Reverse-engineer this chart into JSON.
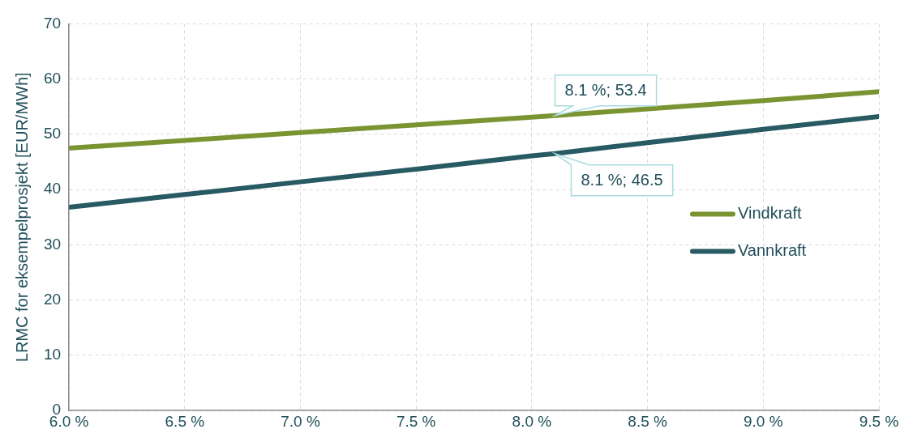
{
  "chart_data": {
    "type": "line",
    "ylabel": "LRMC for eksempelprosjekt [EUR/MWh]",
    "x": [
      6.0,
      6.5,
      7.0,
      7.5,
      8.0,
      8.1,
      8.5,
      9.0,
      9.5
    ],
    "series": [
      {
        "name": "Vindkraft",
        "color": "#7a9432",
        "values": [
          47.5,
          48.9,
          50.3,
          51.7,
          53.1,
          53.4,
          54.6,
          56.1,
          57.7
        ]
      },
      {
        "name": "Vannkraft",
        "color": "#275a62",
        "values": [
          36.8,
          39.1,
          41.4,
          43.7,
          46.1,
          46.5,
          48.5,
          50.9,
          53.2
        ]
      }
    ],
    "xlim": [
      6.0,
      9.5
    ],
    "xticks": [
      {
        "value": 6.0,
        "label": "6.0 %"
      },
      {
        "value": 6.5,
        "label": "6.5 %"
      },
      {
        "value": 7.0,
        "label": "7.0 %"
      },
      {
        "value": 7.5,
        "label": "7.5 %"
      },
      {
        "value": 8.0,
        "label": "8.0 %"
      },
      {
        "value": 8.5,
        "label": "8.5 %"
      },
      {
        "value": 9.0,
        "label": "9.0 %"
      },
      {
        "value": 9.5,
        "label": "9.5 %"
      }
    ],
    "ylim": [
      0,
      70
    ],
    "yticks": [
      0,
      10,
      20,
      30,
      40,
      50,
      60,
      70
    ],
    "annotations": [
      {
        "text": "8.1 %; 53.4",
        "x": 8.1,
        "y": 53.4
      },
      {
        "text": "8.1 %; 46.5",
        "x": 8.1,
        "y": 46.5
      }
    ],
    "grid": true,
    "legend": "right",
    "marker": "none",
    "line_style": "solid"
  }
}
